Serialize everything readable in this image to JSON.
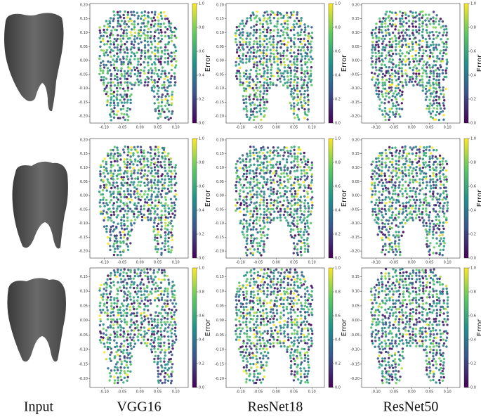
{
  "figure": {
    "columns": [
      "Input",
      "VGG16",
      "ResNet18",
      "ResNet50"
    ],
    "colorbar": {
      "label": "Error",
      "ticks": [
        {
          "value": 0,
          "label": "0.0"
        },
        {
          "value": 0.2,
          "label": "0.2"
        },
        {
          "value": 0.4,
          "label": "0.4"
        },
        {
          "value": 0.6,
          "label": "0.6"
        },
        {
          "value": 0.8,
          "label": "0.8"
        },
        {
          "value": 1,
          "label": "1.0"
        }
      ]
    },
    "xlim": [
      -0.14,
      0.135
    ],
    "xticks": [
      {
        "value": -0.1,
        "label": "-0.10"
      },
      {
        "value": -0.05,
        "label": "-0.05"
      },
      {
        "value": 0,
        "label": "0.00"
      },
      {
        "value": 0.05,
        "label": "0.05"
      },
      {
        "value": 0.1,
        "label": "0.10"
      }
    ],
    "rows": [
      {
        "ylim": [
          -0.225,
          0.205
        ],
        "yticks": [
          {
            "value": 0.2,
            "label": "0.20"
          },
          {
            "value": 0.15,
            "label": "0.15"
          },
          {
            "value": 0.1,
            "label": "0.10"
          },
          {
            "value": 0.05,
            "label": "0.05"
          },
          {
            "value": 0,
            "label": "0.00"
          },
          {
            "value": -0.05,
            "label": "-0.05"
          },
          {
            "value": -0.1,
            "label": "-0.10"
          },
          {
            "value": -0.15,
            "label": "-0.15"
          },
          {
            "value": -0.2,
            "label": "-0.20"
          }
        ]
      },
      {
        "ylim": [
          -0.225,
          0.205
        ],
        "yticks": [
          {
            "value": 0.2,
            "label": "0.20"
          },
          {
            "value": 0.15,
            "label": "0.15"
          },
          {
            "value": 0.1,
            "label": "0.10"
          },
          {
            "value": 0.05,
            "label": "0.05"
          },
          {
            "value": 0,
            "label": "0.00"
          },
          {
            "value": -0.05,
            "label": "-0.05"
          },
          {
            "value": -0.1,
            "label": "-0.10"
          },
          {
            "value": -0.15,
            "label": "-0.15"
          },
          {
            "value": -0.2,
            "label": "-0.20"
          }
        ]
      },
      {
        "ylim": [
          -0.23,
          0.18
        ],
        "yticks": [
          {
            "value": 0.15,
            "label": "0.15"
          },
          {
            "value": 0.1,
            "label": "0.10"
          },
          {
            "value": 0.05,
            "label": "0.05"
          },
          {
            "value": 0,
            "label": "0.00"
          },
          {
            "value": -0.05,
            "label": "-0.05"
          },
          {
            "value": -0.1,
            "label": "-0.10"
          },
          {
            "value": -0.15,
            "label": "-0.15"
          },
          {
            "value": -0.2,
            "label": "-0.20"
          }
        ]
      }
    ]
  }
}
